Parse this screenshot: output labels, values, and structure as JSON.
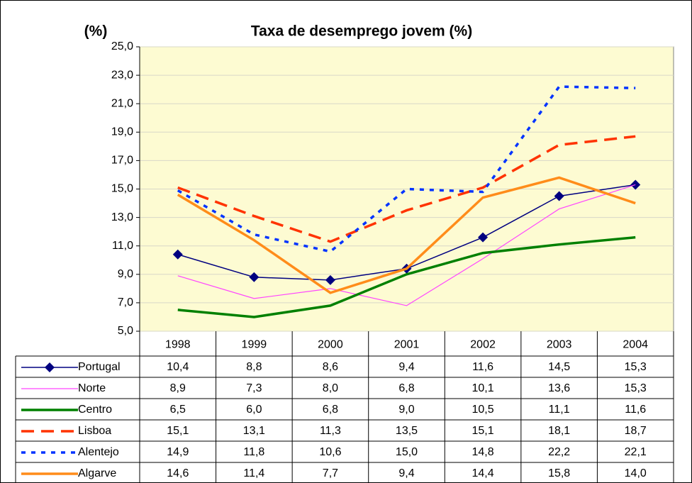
{
  "chart_data": {
    "type": "line",
    "title": "Taxa de desemprego jovem (%)",
    "y_label": "(%)",
    "categories": [
      "1998",
      "1999",
      "2000",
      "2001",
      "2002",
      "2003",
      "2004"
    ],
    "ylim": [
      5,
      25
    ],
    "yticks": [
      {
        "value": 5,
        "label": "5,0"
      },
      {
        "value": 7,
        "label": "7,0"
      },
      {
        "value": 9,
        "label": "9,0"
      },
      {
        "value": 11,
        "label": "11,0"
      },
      {
        "value": 13,
        "label": "13,0"
      },
      {
        "value": 15,
        "label": "15,0"
      },
      {
        "value": 17,
        "label": "17,0"
      },
      {
        "value": 19,
        "label": "19,0"
      },
      {
        "value": 21,
        "label": "21,0"
      },
      {
        "value": 23,
        "label": "23,0"
      },
      {
        "value": 25,
        "label": "25,0"
      }
    ],
    "grid": true,
    "series": [
      {
        "name": "Portugal",
        "color": "#000080",
        "values": [
          10.4,
          8.8,
          8.6,
          9.4,
          11.6,
          14.5,
          15.3
        ],
        "value_labels": [
          "10,4",
          "8,8",
          "8,6",
          "9,4",
          "11,6",
          "14,5",
          "15,3"
        ]
      },
      {
        "name": "Norte",
        "color": "#ff44ff",
        "values": [
          8.9,
          7.3,
          8.0,
          6.8,
          10.1,
          13.6,
          15.3
        ],
        "value_labels": [
          "8,9",
          "7,3",
          "8,0",
          "6,8",
          "10,1",
          "13,6",
          "15,3"
        ]
      },
      {
        "name": "Centro",
        "color": "#008000",
        "values": [
          6.5,
          6.0,
          6.8,
          9.0,
          10.5,
          11.1,
          11.6
        ],
        "value_labels": [
          "6,5",
          "6,0",
          "6,8",
          "9,0",
          "10,5",
          "11,1",
          "11,6"
        ]
      },
      {
        "name": "Lisboa",
        "color": "#ff3300",
        "values": [
          15.1,
          13.1,
          11.3,
          13.5,
          15.1,
          18.1,
          18.7
        ],
        "value_labels": [
          "15,1",
          "13,1",
          "11,3",
          "13,5",
          "15,1",
          "18,1",
          "18,7"
        ]
      },
      {
        "name": "Alentejo",
        "color": "#0033ff",
        "values": [
          14.9,
          11.8,
          10.6,
          15.0,
          14.8,
          22.2,
          22.1
        ],
        "value_labels": [
          "14,9",
          "11,8",
          "10,6",
          "15,0",
          "14,8",
          "22,2",
          "22,1"
        ]
      },
      {
        "name": "Algarve",
        "color": "#ff8c1a",
        "values": [
          14.6,
          11.4,
          7.7,
          9.4,
          14.4,
          15.8,
          14.0
        ],
        "value_labels": [
          "14,6",
          "11,4",
          "7,7",
          "9,4",
          "14,4",
          "15,8",
          "14,0"
        ]
      }
    ]
  }
}
